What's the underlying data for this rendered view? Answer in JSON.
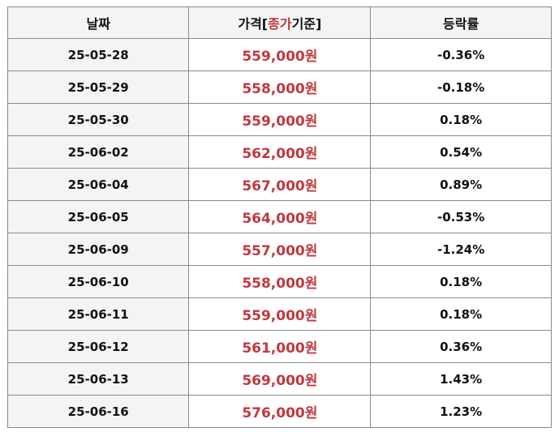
{
  "header": {
    "date": "날짜",
    "price_prefix": "가격[",
    "price_accent": "종가",
    "price_suffix": "기준]",
    "change": "등락률"
  },
  "colors": {
    "price_text": "#c0383e",
    "header_bg": "#f4f4f4",
    "border": "#8a8a8a"
  },
  "rows": [
    {
      "date": "25-05-28",
      "price": "559,000원",
      "change": "-0.36%"
    },
    {
      "date": "25-05-29",
      "price": "558,000원",
      "change": "-0.18%"
    },
    {
      "date": "25-05-30",
      "price": "559,000원",
      "change": "0.18%"
    },
    {
      "date": "25-06-02",
      "price": "562,000원",
      "change": "0.54%"
    },
    {
      "date": "25-06-04",
      "price": "567,000원",
      "change": "0.89%"
    },
    {
      "date": "25-06-05",
      "price": "564,000원",
      "change": "-0.53%"
    },
    {
      "date": "25-06-09",
      "price": "557,000원",
      "change": "-1.24%"
    },
    {
      "date": "25-06-10",
      "price": "558,000원",
      "change": "0.18%"
    },
    {
      "date": "25-06-11",
      "price": "559,000원",
      "change": "0.18%"
    },
    {
      "date": "25-06-12",
      "price": "561,000원",
      "change": "0.36%"
    },
    {
      "date": "25-06-13",
      "price": "569,000원",
      "change": "1.43%"
    },
    {
      "date": "25-06-16",
      "price": "576,000원",
      "change": "1.23%"
    }
  ]
}
